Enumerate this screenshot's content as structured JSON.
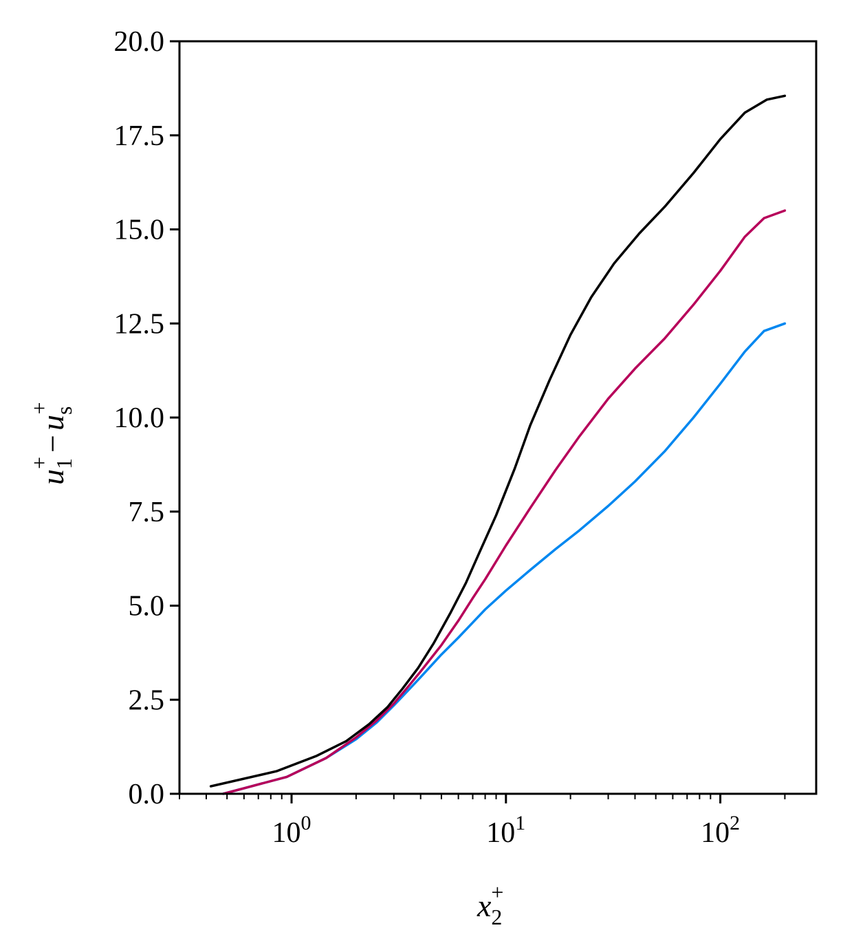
{
  "chart_data": {
    "type": "line",
    "xscale": "log",
    "xlim": [
      0.3,
      280
    ],
    "ylim": [
      0.0,
      20.0
    ],
    "xlabel": {
      "base": "x",
      "sub": "2",
      "sup": "+"
    },
    "ylabel": {
      "part1_base": "u",
      "part1_sub": "1",
      "part1_sup": "+",
      "minus": "−",
      "part2_base": "u",
      "part2_sub": "s",
      "part2_sup": "+"
    },
    "yticks": [
      {
        "value": 0.0,
        "label": "0.0"
      },
      {
        "value": 2.5,
        "label": "2.5"
      },
      {
        "value": 5.0,
        "label": "5.0"
      },
      {
        "value": 7.5,
        "label": "7.5"
      },
      {
        "value": 10.0,
        "label": "10.0"
      },
      {
        "value": 12.5,
        "label": "12.5"
      },
      {
        "value": 15.0,
        "label": "15.0"
      },
      {
        "value": 17.5,
        "label": "17.5"
      },
      {
        "value": 20.0,
        "label": "20.0"
      }
    ],
    "xticks": [
      {
        "value": 1,
        "base": "10",
        "exp": "0"
      },
      {
        "value": 10,
        "base": "10",
        "exp": "1"
      },
      {
        "value": 100,
        "base": "10",
        "exp": "2"
      }
    ],
    "series": [
      {
        "color": "#0087f0",
        "points": [
          [
            0.48,
            0.0
          ],
          [
            0.95,
            0.45
          ],
          [
            1.45,
            0.95
          ],
          [
            2.0,
            1.45
          ],
          [
            2.5,
            1.9
          ],
          [
            3.0,
            2.35
          ],
          [
            3.5,
            2.75
          ],
          [
            4.0,
            3.1
          ],
          [
            5.0,
            3.7
          ],
          [
            6.0,
            4.15
          ],
          [
            7.0,
            4.55
          ],
          [
            8.0,
            4.9
          ],
          [
            10.0,
            5.4
          ],
          [
            13.0,
            5.95
          ],
          [
            17.0,
            6.5
          ],
          [
            22.0,
            7.0
          ],
          [
            30.0,
            7.65
          ],
          [
            40.0,
            8.3
          ],
          [
            55.0,
            9.1
          ],
          [
            75.0,
            10.0
          ],
          [
            100.0,
            10.9
          ],
          [
            130.0,
            11.75
          ],
          [
            160.0,
            12.3
          ],
          [
            200.0,
            12.5
          ]
        ]
      },
      {
        "color": "#b7005a",
        "points": [
          [
            0.48,
            0.0
          ],
          [
            0.95,
            0.45
          ],
          [
            1.45,
            0.95
          ],
          [
            2.0,
            1.5
          ],
          [
            2.5,
            1.95
          ],
          [
            3.0,
            2.4
          ],
          [
            3.5,
            2.85
          ],
          [
            4.0,
            3.25
          ],
          [
            5.0,
            3.95
          ],
          [
            6.0,
            4.6
          ],
          [
            7.0,
            5.2
          ],
          [
            8.0,
            5.7
          ],
          [
            10.0,
            6.6
          ],
          [
            13.0,
            7.6
          ],
          [
            17.0,
            8.6
          ],
          [
            22.0,
            9.5
          ],
          [
            30.0,
            10.5
          ],
          [
            40.0,
            11.3
          ],
          [
            55.0,
            12.1
          ],
          [
            75.0,
            13.0
          ],
          [
            100.0,
            13.9
          ],
          [
            130.0,
            14.8
          ],
          [
            160.0,
            15.3
          ],
          [
            200.0,
            15.5
          ]
        ]
      },
      {
        "color": "#000000",
        "points": [
          [
            0.42,
            0.2
          ],
          [
            0.85,
            0.6
          ],
          [
            1.3,
            1.0
          ],
          [
            1.8,
            1.4
          ],
          [
            2.3,
            1.85
          ],
          [
            2.8,
            2.3
          ],
          [
            3.3,
            2.8
          ],
          [
            3.9,
            3.35
          ],
          [
            4.6,
            4.0
          ],
          [
            5.5,
            4.8
          ],
          [
            6.5,
            5.6
          ],
          [
            7.5,
            6.4
          ],
          [
            9.0,
            7.4
          ],
          [
            11.0,
            8.65
          ],
          [
            13.0,
            9.8
          ],
          [
            16.0,
            11.0
          ],
          [
            20.0,
            12.2
          ],
          [
            25.0,
            13.2
          ],
          [
            32.0,
            14.1
          ],
          [
            42.0,
            14.9
          ],
          [
            55.0,
            15.6
          ],
          [
            75.0,
            16.5
          ],
          [
            100.0,
            17.4
          ],
          [
            130.0,
            18.1
          ],
          [
            165.0,
            18.45
          ],
          [
            200.0,
            18.55
          ]
        ]
      }
    ],
    "grid": false,
    "legend": "none"
  }
}
